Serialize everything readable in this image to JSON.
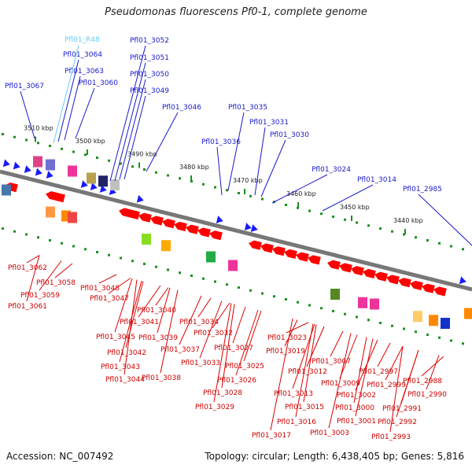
{
  "title": "Pseudomonas fluorescens Pf0-1, complete genome",
  "accession": "Accession: NC_007492",
  "topology": "Topology: circular; Length: 6,438,405 bp; Genes: 5,816",
  "ticks": [
    "3510 kbp",
    "3500 kbp",
    "3490 kbp",
    "3480 kbp",
    "3470 kbp",
    "3460 kbp",
    "3450 kbp",
    "3440 kbp"
  ],
  "colors": {
    "forward_gene": "#1a1aff",
    "reverse_gene": "#ff0000",
    "trna": "#66ccff",
    "backbone": "#777777",
    "tick": "#1f8f1f"
  },
  "labels_top_blue": [
    "Pfl01_3064",
    "Pfl01_3063",
    "Pfl01_3060",
    "Pfl01_3067",
    "Pfl01_3052",
    "Pfl01_3051",
    "Pfl01_3050",
    "Pfl01_3049",
    "Pfl01_3046",
    "Pfl01_3035",
    "Pfl01_3031",
    "Pfl01_3030",
    "Pfl01_3036",
    "Pfl01_3024",
    "Pfl01_3014",
    "Pfl01_2985"
  ],
  "labels_top_trna": [
    "Pfl01_R48"
  ],
  "labels_bottom_red": [
    "Pfl01_3062",
    "Pfl01_3058",
    "Pfl01_3059",
    "Pfl01_3061",
    "Pfl01_3048",
    "Pfl01_3047",
    "Pfl01_3040",
    "Pfl01_3045",
    "Pfl01_3041",
    "Pfl01_3039",
    "Pfl01_3042",
    "Pfl01_3043",
    "Pfl01_3044",
    "Pfl01_3038",
    "Pfl01_3037",
    "Pfl01_3034",
    "Pfl01_3032",
    "Pfl01_3033",
    "Pfl01_3027",
    "Pfl01_3025",
    "Pfl01_3026",
    "Pfl01_3028",
    "Pfl01_3029",
    "Pfl01_3023",
    "Pfl01_3019",
    "Pfl01_3012",
    "Pfl01_3013",
    "Pfl01_3015",
    "Pfl01_3016",
    "Pfl01_3017",
    "Pfl01_3007",
    "Pfl01_3009",
    "Pfl01_3002",
    "Pfl01_3000",
    "Pfl01_3001",
    "Pfl01_3003",
    "Pfl01_2997",
    "Pfl01_2999",
    "Pfl01_2988",
    "Pfl01_2990",
    "Pfl01_2991",
    "Pfl01_2992",
    "Pfl01_2993"
  ]
}
